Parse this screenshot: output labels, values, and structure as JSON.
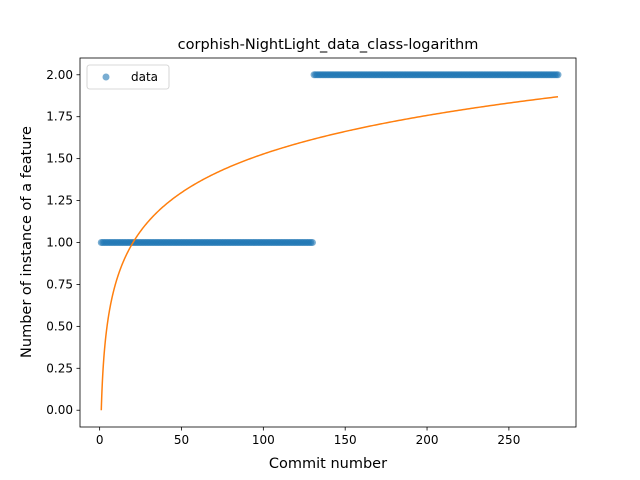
{
  "chart_data": {
    "type": "scatter",
    "title": "corphish-NightLight_data_class-logarithm",
    "xlabel": "Commit number",
    "ylabel": "Number of instance of a feature",
    "xlim": [
      -12,
      291
    ],
    "ylim": [
      -0.1,
      2.1
    ],
    "xticks": [
      0,
      50,
      100,
      150,
      200,
      250
    ],
    "yticks": [
      0.0,
      0.25,
      0.5,
      0.75,
      1.0,
      1.25,
      1.5,
      1.75,
      2.0
    ],
    "xtick_labels": [
      "0",
      "50",
      "100",
      "150",
      "200",
      "250"
    ],
    "ytick_labels": [
      "0.00",
      "0.25",
      "0.50",
      "0.75",
      "1.00",
      "1.25",
      "1.50",
      "1.75",
      "2.00"
    ],
    "legend": {
      "placement": "upper-left",
      "entries": [
        "data"
      ]
    },
    "series": [
      {
        "name": "data",
        "kind": "scatter",
        "color": "#1f77b4",
        "segments": [
          {
            "x_start": 1,
            "x_end": 130,
            "y": 1
          },
          {
            "x_start": 131,
            "x_end": 280,
            "y": 2
          }
        ]
      },
      {
        "kind": "line",
        "color": "#ff7f0e",
        "model": "logarithmic",
        "equation": "y = a * ln(x)",
        "a": 0.3317,
        "x_range": [
          1,
          280
        ]
      }
    ]
  }
}
